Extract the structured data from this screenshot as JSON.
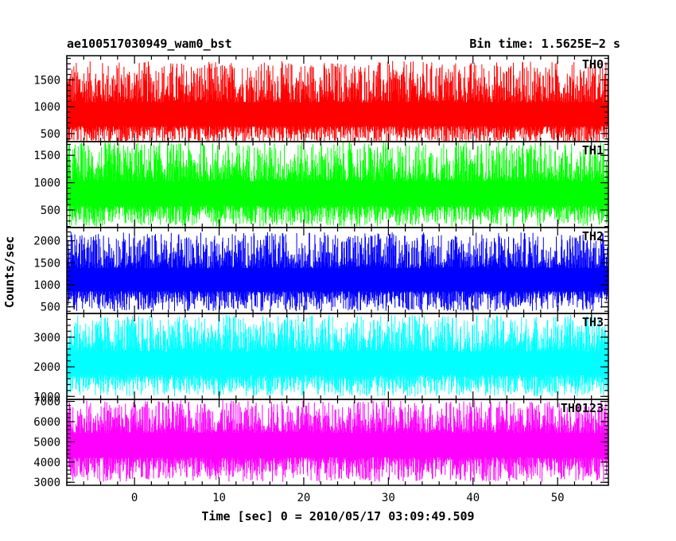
{
  "chart_data": {
    "type": "line",
    "title_left": "ae100517030949_wam0_bst",
    "title_right": "Bin time: 1.5625E−2 s",
    "xlabel": "Time [sec] 0 = 2010/05/17 03:09:49.509",
    "ylabel": "Counts/sec",
    "xlim": [
      -8,
      56
    ],
    "xticks": [
      0,
      10,
      20,
      30,
      40,
      50
    ],
    "panels": [
      {
        "name": "TH0",
        "color": "#ff0000",
        "ylim": [
          350,
          1950
        ],
        "yticks": [
          500,
          1000,
          1500
        ],
        "mean": 820,
        "low": 300,
        "high": 1850
      },
      {
        "name": "TH1",
        "color": "#00ff00",
        "ylim": [
          180,
          1750
        ],
        "yticks": [
          500,
          1000,
          1500
        ],
        "mean": 780,
        "low": 200,
        "high": 1750
      },
      {
        "name": "TH2",
        "color": "#0000ff",
        "ylim": [
          350,
          2300
        ],
        "yticks": [
          500,
          1000,
          1500,
          2000
        ],
        "mean": 1100,
        "low": 400,
        "high": 2200
      },
      {
        "name": "TH3",
        "color": "#00ffff",
        "ylim": [
          900,
          3800
        ],
        "yticks": [
          1000,
          2000,
          3000
        ],
        "mean": 2100,
        "low": 1000,
        "high": 3750
      },
      {
        "name": "TH0123",
        "color": "#ff00ff",
        "ylim": [
          2850,
          7100
        ],
        "yticks": [
          3000,
          4000,
          5000,
          6000,
          7000
        ],
        "mean": 4900,
        "low": 3000,
        "high": 7050
      }
    ]
  }
}
